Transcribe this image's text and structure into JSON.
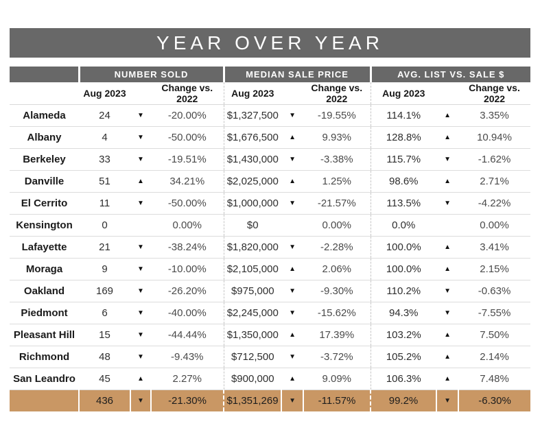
{
  "chart_data": {
    "type": "table",
    "title": "YEAR OVER YEAR",
    "column_groups": [
      "NUMBER SOLD",
      "MEDIAN SALE PRICE",
      "AVG. LIST VS. SALE $"
    ],
    "sub_columns": [
      "Aug 2023",
      "Change vs. 2022"
    ],
    "icons": {
      "up_arrow": "▲",
      "down_arrow": "▼"
    },
    "rows": [
      {
        "city": "Alameda",
        "number_sold": {
          "value": "24",
          "direction": "down",
          "change": "-20.00%"
        },
        "median_sale_price": {
          "value": "$1,327,500",
          "direction": "down",
          "change": "-19.55%"
        },
        "avg_list_vs_sale": {
          "value": "114.1%",
          "direction": "up",
          "change": "3.35%"
        }
      },
      {
        "city": "Albany",
        "number_sold": {
          "value": "4",
          "direction": "down",
          "change": "-50.00%"
        },
        "median_sale_price": {
          "value": "$1,676,500",
          "direction": "up",
          "change": "9.93%"
        },
        "avg_list_vs_sale": {
          "value": "128.8%",
          "direction": "up",
          "change": "10.94%"
        }
      },
      {
        "city": "Berkeley",
        "number_sold": {
          "value": "33",
          "direction": "down",
          "change": "-19.51%"
        },
        "median_sale_price": {
          "value": "$1,430,000",
          "direction": "down",
          "change": "-3.38%"
        },
        "avg_list_vs_sale": {
          "value": "115.7%",
          "direction": "down",
          "change": "-1.62%"
        }
      },
      {
        "city": "Danville",
        "number_sold": {
          "value": "51",
          "direction": "up",
          "change": "34.21%"
        },
        "median_sale_price": {
          "value": "$2,025,000",
          "direction": "up",
          "change": "1.25%"
        },
        "avg_list_vs_sale": {
          "value": "98.6%",
          "direction": "up",
          "change": "2.71%"
        }
      },
      {
        "city": "El Cerrito",
        "number_sold": {
          "value": "11",
          "direction": "down",
          "change": "-50.00%"
        },
        "median_sale_price": {
          "value": "$1,000,000",
          "direction": "down",
          "change": "-21.57%"
        },
        "avg_list_vs_sale": {
          "value": "113.5%",
          "direction": "down",
          "change": "-4.22%"
        }
      },
      {
        "city": "Kensington",
        "number_sold": {
          "value": "0",
          "direction": "none",
          "change": "0.00%"
        },
        "median_sale_price": {
          "value": "$0",
          "direction": "none",
          "change": "0.00%"
        },
        "avg_list_vs_sale": {
          "value": "0.0%",
          "direction": "none",
          "change": "0.00%"
        }
      },
      {
        "city": "Lafayette",
        "number_sold": {
          "value": "21",
          "direction": "down",
          "change": "-38.24%"
        },
        "median_sale_price": {
          "value": "$1,820,000",
          "direction": "down",
          "change": "-2.28%"
        },
        "avg_list_vs_sale": {
          "value": "100.0%",
          "direction": "up",
          "change": "3.41%"
        }
      },
      {
        "city": "Moraga",
        "number_sold": {
          "value": "9",
          "direction": "down",
          "change": "-10.00%"
        },
        "median_sale_price": {
          "value": "$2,105,000",
          "direction": "up",
          "change": "2.06%"
        },
        "avg_list_vs_sale": {
          "value": "100.0%",
          "direction": "up",
          "change": "2.15%"
        }
      },
      {
        "city": "Oakland",
        "number_sold": {
          "value": "169",
          "direction": "down",
          "change": "-26.20%"
        },
        "median_sale_price": {
          "value": "$975,000",
          "direction": "down",
          "change": "-9.30%"
        },
        "avg_list_vs_sale": {
          "value": "110.2%",
          "direction": "down",
          "change": "-0.63%"
        }
      },
      {
        "city": "Piedmont",
        "number_sold": {
          "value": "6",
          "direction": "down",
          "change": "-40.00%"
        },
        "median_sale_price": {
          "value": "$2,245,000",
          "direction": "down",
          "change": "-15.62%"
        },
        "avg_list_vs_sale": {
          "value": "94.3%",
          "direction": "down",
          "change": "-7.55%"
        }
      },
      {
        "city": "Pleasant Hill",
        "number_sold": {
          "value": "15",
          "direction": "down",
          "change": "-44.44%"
        },
        "median_sale_price": {
          "value": "$1,350,000",
          "direction": "up",
          "change": "17.39%"
        },
        "avg_list_vs_sale": {
          "value": "103.2%",
          "direction": "up",
          "change": "7.50%"
        }
      },
      {
        "city": "Richmond",
        "number_sold": {
          "value": "48",
          "direction": "down",
          "change": "-9.43%"
        },
        "median_sale_price": {
          "value": "$712,500",
          "direction": "down",
          "change": "-3.72%"
        },
        "avg_list_vs_sale": {
          "value": "105.2%",
          "direction": "up",
          "change": "2.14%"
        }
      },
      {
        "city": "San Leandro",
        "number_sold": {
          "value": "45",
          "direction": "up",
          "change": "2.27%"
        },
        "median_sale_price": {
          "value": "$900,000",
          "direction": "up",
          "change": "9.09%"
        },
        "avg_list_vs_sale": {
          "value": "106.3%",
          "direction": "up",
          "change": "7.48%"
        }
      }
    ],
    "total_row": {
      "city": "",
      "number_sold": {
        "value": "436",
        "direction": "down",
        "change": "-21.30%"
      },
      "median_sale_price": {
        "value": "$1,351,269",
        "direction": "down",
        "change": "-11.57%"
      },
      "avg_list_vs_sale": {
        "value": "99.2%",
        "direction": "down",
        "change": "-6.30%"
      }
    },
    "layout": {
      "grid": "horizontal-row-dividers",
      "group_dividers": "dashed-vertical"
    }
  },
  "colors": {
    "header_bg": "#686868",
    "header_text": "#ffffff",
    "total_row_bg": "#c99764",
    "row_divider": "#dcdcdc",
    "dashed_divider": "#c6c6c6"
  }
}
